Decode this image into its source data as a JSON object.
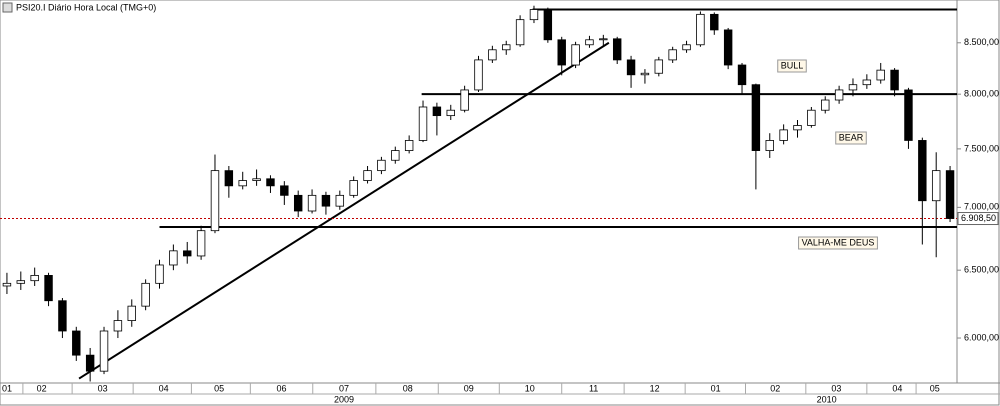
{
  "chart_data": {
    "type": "candlestick",
    "title": "PSI20.I Diário Hora Local (TMG+0)",
    "log_scale": true,
    "grid": false,
    "up_color": "#ffffff",
    "down_color": "#000000",
    "xlim": [
      0,
      69
    ],
    "ylim": [
      5690,
      8940
    ],
    "yticks": [
      {
        "value": 6000,
        "label": "6.000,00"
      },
      {
        "value": 6500,
        "label": "6.500,00"
      },
      {
        "value": 7000,
        "label": "7.000,00"
      },
      {
        "value": 7500,
        "label": "7.500,00"
      },
      {
        "value": 8000,
        "label": "8.000,00"
      },
      {
        "value": 8500,
        "label": "8.500,00"
      }
    ],
    "xticks": [
      {
        "value": 0.3,
        "label": "01"
      },
      {
        "value": 3,
        "label": "02"
      },
      {
        "value": 7.4,
        "label": "03"
      },
      {
        "value": 11.8,
        "label": "04"
      },
      {
        "value": 15.8,
        "label": "05"
      },
      {
        "value": 20.3,
        "label": "06"
      },
      {
        "value": 24.8,
        "label": "07"
      },
      {
        "value": 29.4,
        "label": "08"
      },
      {
        "value": 33.8,
        "label": "09"
      },
      {
        "value": 38.2,
        "label": "10"
      },
      {
        "value": 42.8,
        "label": "11"
      },
      {
        "value": 47.2,
        "label": "12"
      },
      {
        "value": 51.6,
        "label": "01"
      },
      {
        "value": 55.9,
        "label": "02"
      },
      {
        "value": 60.3,
        "label": "03"
      },
      {
        "value": 64.7,
        "label": "04"
      },
      {
        "value": 67.4,
        "label": "05"
      }
    ],
    "year_ticks": [
      {
        "value": 24.8,
        "label": "2009"
      },
      {
        "value": 59.6,
        "label": "2010"
      }
    ],
    "open": [
      6380,
      6400,
      6420,
      6460,
      6270,
      6050,
      5880,
      5770,
      6050,
      6125,
      6230,
      6400,
      6540,
      6650,
      6610,
      6810,
      7310,
      7180,
      7225,
      7240,
      7180,
      7100,
      6970,
      7100,
      7010,
      7100,
      7225,
      7310,
      7400,
      7485,
      7575,
      7880,
      7800,
      7850,
      8040,
      8330,
      8430,
      8480,
      8735,
      8840,
      8530,
      8280,
      8480,
      8530,
      8540,
      8330,
      8185,
      8200,
      8330,
      8430,
      8480,
      8790,
      8630,
      8280,
      8090,
      7485,
      7575,
      7670,
      7710,
      7850,
      7945,
      8040,
      8090,
      8135,
      8230,
      8040,
      7575,
      7055,
      7310
    ],
    "high": [
      6480,
      6490,
      6520,
      6480,
      6290,
      6080,
      5930,
      6080,
      6200,
      6280,
      6430,
      6580,
      6700,
      6720,
      6850,
      7450,
      7350,
      7300,
      7320,
      7270,
      7220,
      7140,
      7150,
      7130,
      7140,
      7260,
      7350,
      7430,
      7520,
      7620,
      7940,
      7920,
      7900,
      8080,
      8370,
      8470,
      8520,
      8780,
      8880,
      8860,
      8560,
      8510,
      8570,
      8580,
      8560,
      8370,
      8240,
      8360,
      8460,
      8520,
      8820,
      8810,
      8650,
      8300,
      8100,
      7640,
      7720,
      7760,
      7880,
      7980,
      8080,
      8150,
      8190,
      8300,
      8250,
      8060,
      7600,
      7470,
      7350
    ],
    "low": [
      6320,
      6350,
      6380,
      6230,
      6000,
      5840,
      5700,
      5750,
      6000,
      6080,
      6200,
      6360,
      6500,
      6550,
      6580,
      6790,
      7080,
      7150,
      7180,
      7120,
      7020,
      6920,
      6950,
      6940,
      6980,
      7080,
      7200,
      7280,
      7370,
      7460,
      7560,
      7620,
      7760,
      7830,
      8020,
      8300,
      8380,
      8460,
      8700,
      8500,
      8180,
      8250,
      8450,
      8470,
      8290,
      8060,
      8100,
      8170,
      8300,
      8400,
      8460,
      8580,
      8240,
      8000,
      7150,
      7420,
      7540,
      7600,
      7690,
      7820,
      7910,
      7980,
      8050,
      8100,
      7980,
      7500,
      6700,
      6600,
      6880
    ],
    "close": [
      6400,
      6420,
      6460,
      6270,
      6050,
      5880,
      5770,
      6050,
      6125,
      6230,
      6400,
      6540,
      6650,
      6610,
      6810,
      7310,
      7180,
      7225,
      7240,
      7180,
      7100,
      6970,
      7100,
      7010,
      7100,
      7225,
      7310,
      7400,
      7485,
      7575,
      7880,
      7800,
      7850,
      8040,
      8330,
      8430,
      8480,
      8735,
      8840,
      8530,
      8280,
      8480,
      8530,
      8540,
      8330,
      8185,
      8200,
      8330,
      8430,
      8480,
      8790,
      8630,
      8280,
      8090,
      7485,
      7575,
      7670,
      7710,
      7850,
      7945,
      8040,
      8090,
      8135,
      8230,
      8040,
      7575,
      7055,
      7310,
      6908.5
    ],
    "hlines": [
      {
        "value": 8840,
        "x0": 38.4
      },
      {
        "value": 8000,
        "x0": 30.4
      },
      {
        "value": 6840,
        "x0": 11.5
      }
    ],
    "trendline": {
      "x": [
        5.7,
        43.9
      ],
      "y": [
        5720,
        8500
      ]
    },
    "last": {
      "value": 6908.5,
      "label": "6.908,50",
      "color": "#c00000"
    },
    "annotations": [
      "BULL",
      "BEAR",
      "VALHA-ME DEUS"
    ]
  }
}
